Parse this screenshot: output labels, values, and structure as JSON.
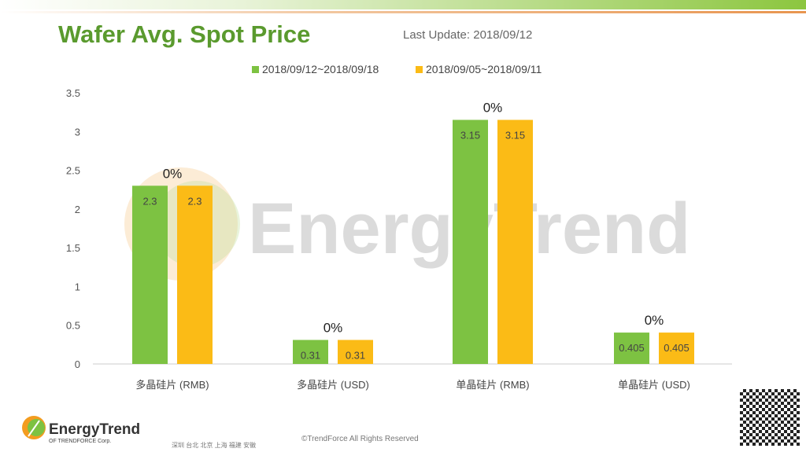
{
  "header": {
    "title": "Wafer Avg. Spot Price",
    "last_update": "Last Update: 2018/09/12"
  },
  "colors": {
    "series1": "#7dc242",
    "series2": "#fbbb16",
    "title": "#5a9a2e"
  },
  "watermark": "EnergyTrend",
  "chart_data": {
    "type": "bar",
    "title": "Wafer Avg. Spot Price",
    "categories": [
      "多晶硅片 (RMB)",
      "多晶硅片 (USD)",
      "单晶硅片 (RMB)",
      "单晶硅片 (USD)"
    ],
    "series": [
      {
        "name": "2018/09/12~2018/09/18",
        "values": [
          2.3,
          0.31,
          3.15,
          0.405
        ],
        "labels": [
          "2.3",
          "0.31",
          "3.15",
          "0.405"
        ]
      },
      {
        "name": "2018/09/05~2018/09/11",
        "values": [
          2.3,
          0.31,
          3.15,
          0.405
        ],
        "labels": [
          "2.3",
          "0.31",
          "3.15",
          "0.405"
        ]
      }
    ],
    "change_labels": [
      "0%",
      "0%",
      "0%",
      "0%"
    ],
    "yticks": [
      "0",
      "0.5",
      "1",
      "1.5",
      "2",
      "2.5",
      "3",
      "3.5"
    ],
    "ylim": [
      0,
      3.5
    ],
    "grid": false,
    "legend": "top"
  },
  "footer": {
    "logo": "EnergyTrend",
    "logo_sub": "OF TRENDFORCE Corp.",
    "cities": "深圳  台北  北京  上海  福建  安徽",
    "copyright": "©TrendForce All Rights Reserved"
  }
}
